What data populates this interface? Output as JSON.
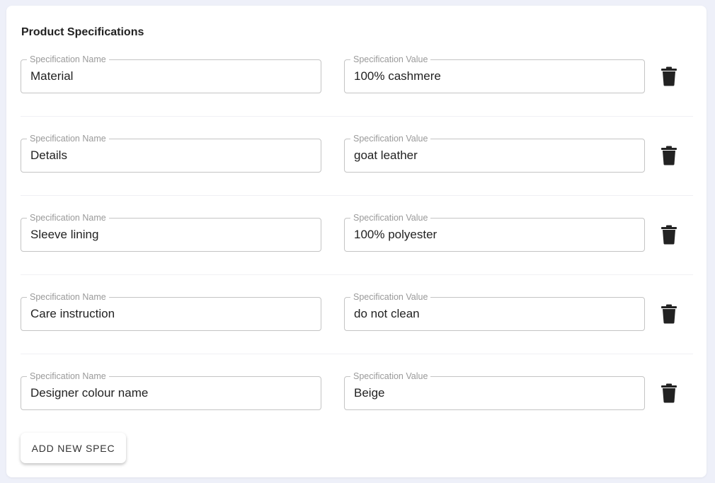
{
  "title": "Product Specifications",
  "name_label": "Specification Name",
  "value_label": "Specification Value",
  "specs": [
    {
      "name": "Material",
      "value": "100% cashmere"
    },
    {
      "name": "Details",
      "value": "goat leather"
    },
    {
      "name": "Sleeve lining",
      "value": "100% polyester"
    },
    {
      "name": "Care instruction",
      "value": "do not clean"
    },
    {
      "name": "Designer colour name",
      "value": "Beige"
    }
  ],
  "add_button": "ADD NEW SPEC",
  "delete_icon": "trash-icon"
}
